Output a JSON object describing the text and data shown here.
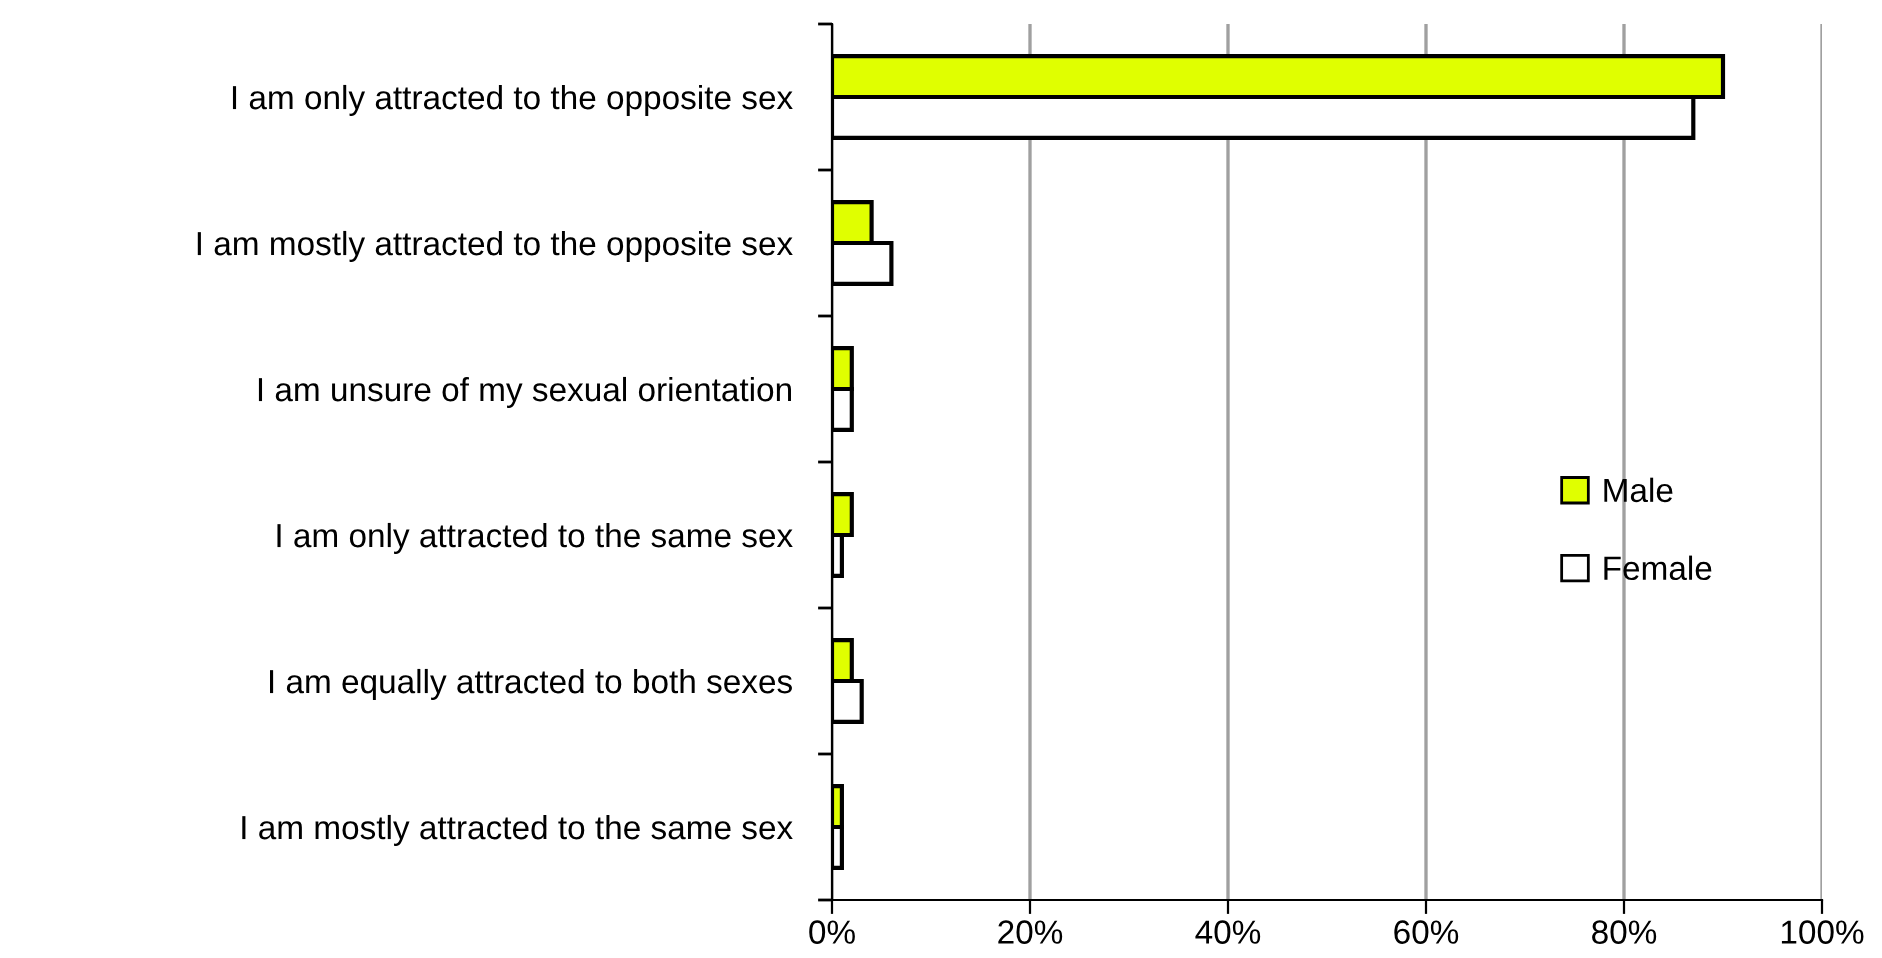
{
  "chart_data": {
    "type": "bar",
    "orientation": "horizontal",
    "categories": [
      "I am only attracted to the opposite sex",
      "I am mostly attracted to the opposite sex",
      "I am unsure of my sexual orientation",
      "I am only attracted to the same sex",
      "I am equally attracted to both sexes",
      "I am mostly attracted to the same sex"
    ],
    "series": [
      {
        "name": "Male",
        "color": "#e0ff00",
        "values": [
          90,
          4,
          2,
          2,
          2,
          1
        ]
      },
      {
        "name": "Female",
        "color": "#ffffff",
        "values": [
          87,
          6,
          2,
          1,
          3,
          1
        ]
      }
    ],
    "xlim": [
      0,
      100
    ],
    "xticks": [
      {
        "value": 0,
        "label": "0%"
      },
      {
        "value": 20,
        "label": "20%"
      },
      {
        "value": 40,
        "label": "40%"
      },
      {
        "value": 60,
        "label": "60%"
      },
      {
        "value": 80,
        "label": "80%"
      },
      {
        "value": 100,
        "label": "100%"
      }
    ],
    "grid": "x",
    "legend": "right"
  }
}
